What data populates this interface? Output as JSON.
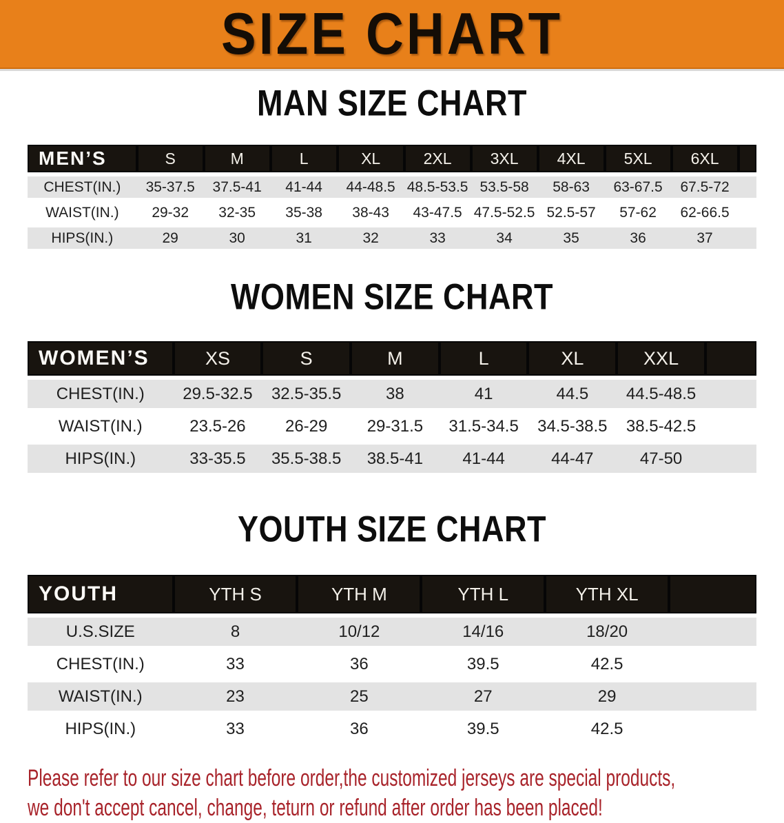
{
  "banner": {
    "title": "SIZE CHART",
    "bg_color": "#e8801a",
    "text_color": "#140d06"
  },
  "sections": [
    {
      "title": "MAN SIZE CHART",
      "header_label": "MEN’S",
      "columns": [
        "S",
        "M",
        "L",
        "XL",
        "2XL",
        "3XL",
        "4XL",
        "5XL",
        "6XL"
      ],
      "rows": [
        {
          "label": "CHEST(IN.)",
          "values": [
            "35-37.5",
            "37.5-41",
            "41-44",
            "44-48.5",
            "48.5-53.5",
            "53.5-58",
            "58-63",
            "63-67.5",
            "67.5-72"
          ]
        },
        {
          "label": "WAIST(IN.)",
          "values": [
            "29-32",
            "32-35",
            "35-38",
            "38-43",
            "43-47.5",
            "47.5-52.5",
            "52.5-57",
            "57-62",
            "62-66.5"
          ]
        },
        {
          "label": "HIPS(IN.)",
          "values": [
            "29",
            "30",
            "31",
            "32",
            "33",
            "34",
            "35",
            "36",
            "37"
          ]
        }
      ]
    },
    {
      "title": "WOMEN SIZE CHART",
      "header_label": "WOMEN’S",
      "columns": [
        "XS",
        "S",
        "M",
        "L",
        "XL",
        "XXL"
      ],
      "rows": [
        {
          "label": "CHEST(IN.)",
          "values": [
            "29.5-32.5",
            "32.5-35.5",
            "38",
            "41",
            "44.5",
            "44.5-48.5"
          ]
        },
        {
          "label": "WAIST(IN.)",
          "values": [
            "23.5-26",
            "26-29",
            "29-31.5",
            "31.5-34.5",
            "34.5-38.5",
            "38.5-42.5"
          ]
        },
        {
          "label": "HIPS(IN.)",
          "values": [
            "33-35.5",
            "35.5-38.5",
            "38.5-41",
            "41-44",
            "44-47",
            "47-50"
          ]
        }
      ]
    },
    {
      "title": "YOUTH SIZE CHART",
      "header_label": "YOUTH",
      "columns": [
        "YTH S",
        "YTH M",
        "YTH L",
        "YTH XL"
      ],
      "rows": [
        {
          "label": "U.S.SIZE",
          "values": [
            "8",
            "10/12",
            "14/16",
            "18/20"
          ]
        },
        {
          "label": "CHEST(IN.)",
          "values": [
            "33",
            "36",
            "39.5",
            "42.5"
          ]
        },
        {
          "label": "WAIST(IN.)",
          "values": [
            "23",
            "25",
            "27",
            "29"
          ]
        },
        {
          "label": "HIPS(IN.)",
          "values": [
            "33",
            "36",
            "39.5",
            "42.5"
          ]
        }
      ]
    }
  ],
  "disclaimer": {
    "line1": "Please refer to our size chart before order,the customized jerseys are special products,",
    "line2": "we don't accept cancel, change, teturn or refund after order has been placed!",
    "color": "#a8232a"
  },
  "row_colors": {
    "alt_gray": "#e3e3e3",
    "white": "#ffffff",
    "header_bar": "#18140f"
  }
}
